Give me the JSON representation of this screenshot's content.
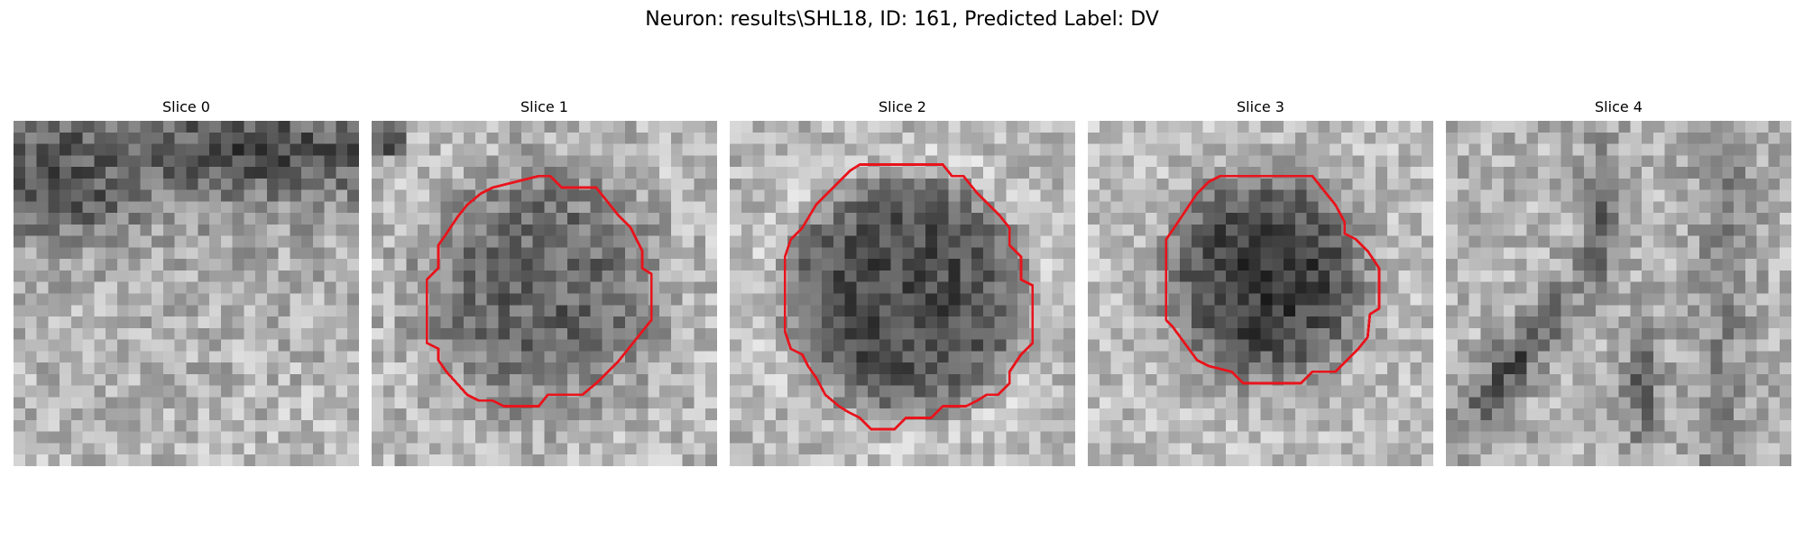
{
  "figure": {
    "title": "Neuron: results\\SHL18, ID: 161, Predicted Label: DV"
  },
  "colors": {
    "contour": "#e8141c",
    "colormap": "gray"
  },
  "panels": [
    {
      "label": "Slice 0",
      "has_contour": false
    },
    {
      "label": "Slice 1",
      "has_contour": true
    },
    {
      "label": "Slice 2",
      "has_contour": true
    },
    {
      "label": "Slice 3",
      "has_contour": true
    },
    {
      "label": "Slice 4",
      "has_contour": false
    }
  ]
}
